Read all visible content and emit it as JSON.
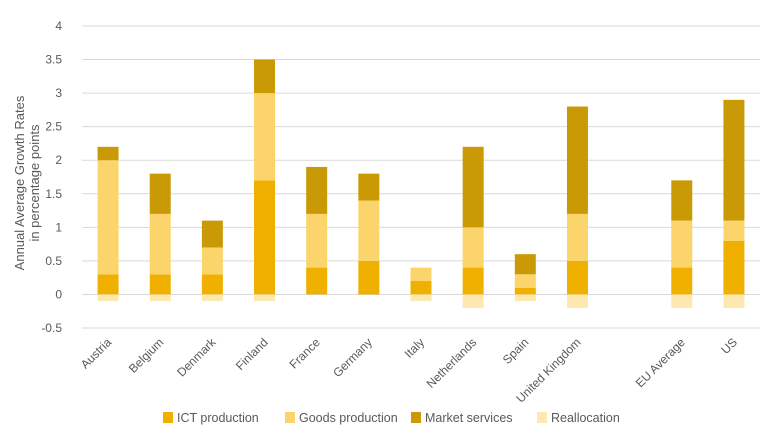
{
  "chart_data": {
    "type": "bar",
    "stacked": true,
    "title": "",
    "ylabel": "Annual Average Growth Rates\nin percentage points",
    "xlabel": "",
    "ylim": [
      -0.5,
      4
    ],
    "yticks": [
      -0.5,
      0,
      0.5,
      1,
      1.5,
      2,
      2.5,
      3,
      3.5,
      4
    ],
    "grid": true,
    "legend_position": "bottom",
    "categories": [
      "Austria",
      "Belgium",
      "Denmark",
      "Finland",
      "France",
      "Germany",
      "Italy",
      "Netherlands",
      "Spain",
      "United Kingdom",
      "",
      "EU Average",
      "US"
    ],
    "series": [
      {
        "name": "ICT production",
        "color": "#f0b000",
        "values": [
          0.3,
          0.3,
          0.3,
          1.7,
          0.4,
          0.5,
          0.2,
          0.4,
          0.1,
          0.5,
          null,
          0.4,
          0.8
        ]
      },
      {
        "name": "Goods production",
        "color": "#fbd56b",
        "values": [
          1.7,
          0.9,
          0.4,
          1.3,
          0.8,
          0.9,
          0.2,
          0.6,
          0.2,
          0.7,
          null,
          0.7,
          0.3
        ]
      },
      {
        "name": "Market services",
        "color": "#c99a06",
        "values": [
          0.2,
          0.6,
          0.4,
          0.5,
          0.7,
          0.4,
          0.0,
          1.2,
          0.3,
          1.6,
          null,
          0.6,
          1.8
        ]
      },
      {
        "name": "Reallocation",
        "color": "#fde8b0",
        "values": [
          -0.1,
          -0.1,
          -0.1,
          -0.1,
          0.0,
          0.0,
          -0.1,
          -0.2,
          -0.1,
          -0.2,
          null,
          -0.2,
          -0.2
        ]
      }
    ]
  }
}
